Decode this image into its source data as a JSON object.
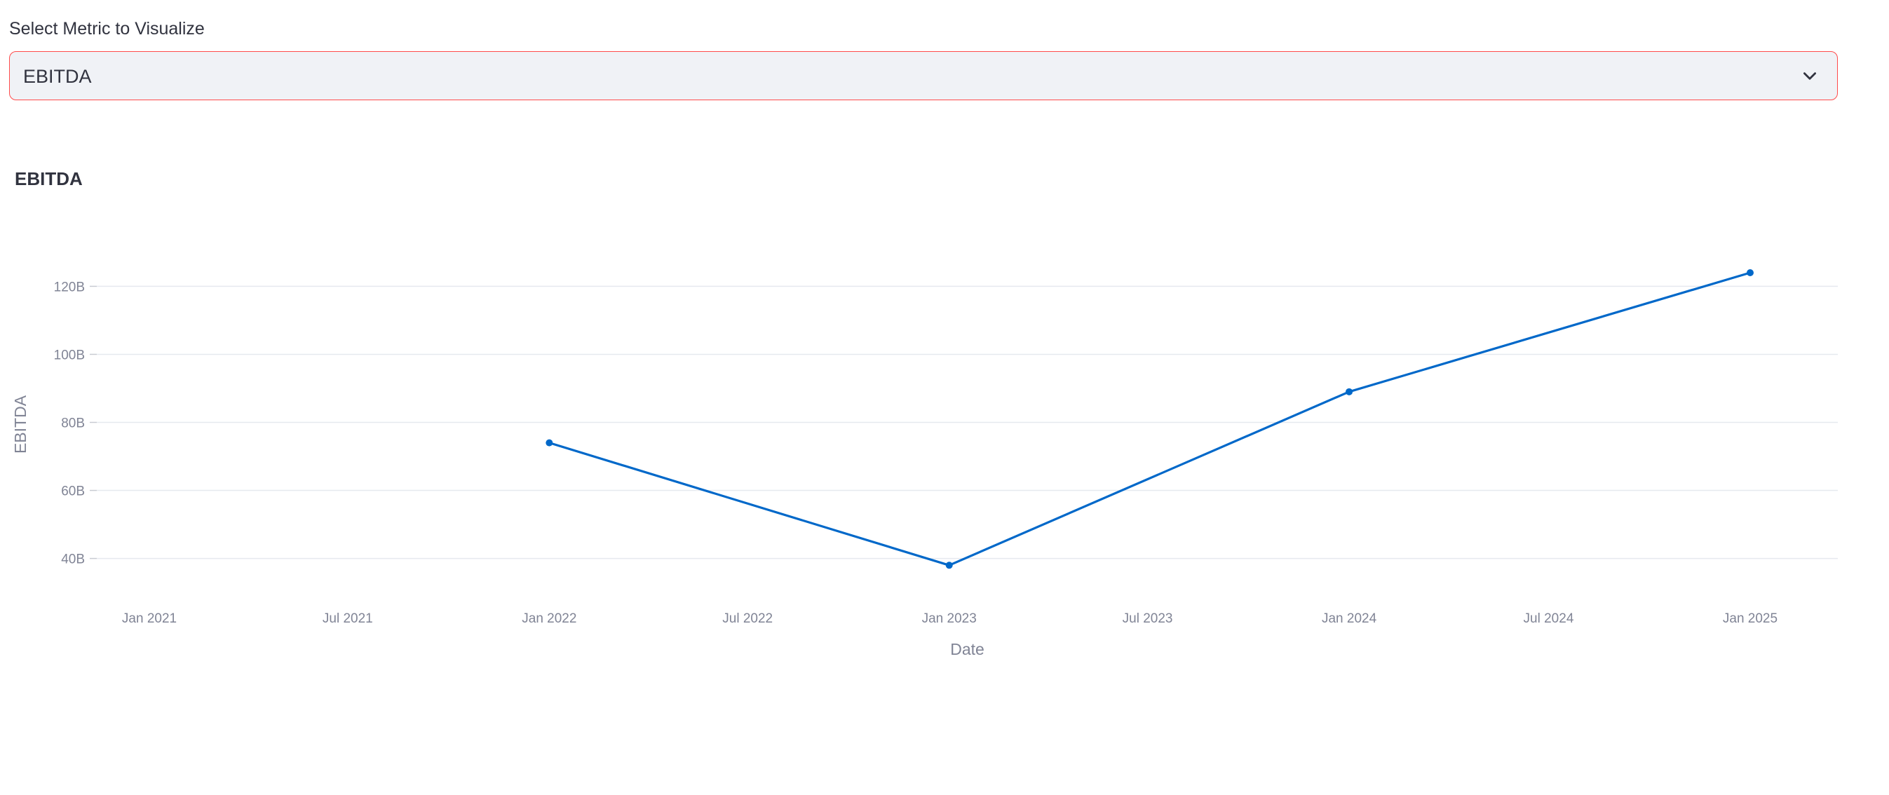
{
  "select": {
    "label": "Select Metric to Visualize",
    "value": "EBITDA",
    "icon": "chevron-down-icon"
  },
  "colors": {
    "accent": "#ff4b4b",
    "line": "#0068c9",
    "grid": "#e6e9ef",
    "tick": "#808495",
    "text": "#31333f",
    "select_bg": "#f0f2f6"
  },
  "chart_data": {
    "type": "line",
    "title": "EBITDA",
    "xlabel": "Date",
    "ylabel": "EBITDA",
    "grid": true,
    "x": [
      "2022-01-01",
      "2023-01-01",
      "2024-01-01",
      "2025-01-01"
    ],
    "series": [
      {
        "values": [
          74000000000,
          38000000000,
          89000000000,
          124000000000
        ]
      }
    ],
    "x_ticks": [
      "Jan 2021",
      "Jul 2021",
      "Jan 2022",
      "Jul 2022",
      "Jan 2023",
      "Jul 2023",
      "Jan 2024",
      "Jul 2024",
      "Jan 2025"
    ],
    "y_ticks": [
      "40B",
      "60B",
      "80B",
      "100B",
      "120B"
    ],
    "xlim": [
      "2020-11-14",
      "2025-03-22"
    ],
    "ylim": [
      36000000000,
      124000000000
    ]
  }
}
